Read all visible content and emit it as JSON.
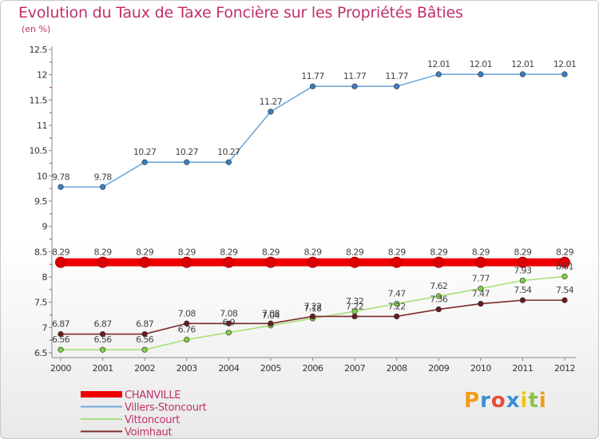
{
  "title": "Evolution du Taux de Taxe Foncière sur les Propriétés Bâties",
  "unit": "(en %)",
  "logo": "Proxiti",
  "chart_data": {
    "type": "line",
    "x": [
      "2000",
      "2001",
      "2002",
      "2003",
      "2004",
      "2005",
      "2006",
      "2007",
      "2008",
      "2009",
      "2010",
      "2011",
      "2012"
    ],
    "ylim": [
      6.5,
      12.5
    ],
    "yticks": [
      "6.5",
      "7",
      "7.5",
      "8",
      "8.5",
      "9",
      "9.5",
      "10",
      "10.5",
      "11",
      "11.5",
      "12",
      "12.5"
    ],
    "grid": false,
    "legend_position": "bottom-left",
    "series": [
      {
        "name": "CHANVILLE",
        "color": "#ee0000",
        "values": [
          8.29,
          8.29,
          8.29,
          8.29,
          8.29,
          8.29,
          8.29,
          8.29,
          8.29,
          8.29,
          8.29,
          8.29,
          8.29
        ],
        "labels": [
          "8.29",
          "8.29",
          "8.29",
          "8.29",
          "8.29",
          "8.29",
          "8.29",
          "8.29",
          "8.29",
          "8.29",
          "8.29",
          "8.29",
          "8.29"
        ]
      },
      {
        "name": "Villers-Stoncourt",
        "color": "#6fa8dc",
        "marker": "#3b7fc4",
        "values": [
          9.78,
          9.78,
          10.27,
          10.27,
          10.27,
          11.27,
          11.77,
          11.77,
          11.77,
          12.01,
          12.01,
          12.01,
          12.01
        ],
        "labels": [
          "9.78",
          "9.78",
          "10.27",
          "10.27",
          "10.27",
          "11.27",
          "11.77",
          "11.77",
          "11.77",
          "12.01",
          "12.01",
          "12.01",
          "12.01"
        ]
      },
      {
        "name": "Vittoncourt",
        "color": "#a8e07a",
        "marker": "#7fd044",
        "values": [
          6.56,
          6.56,
          6.56,
          6.76,
          6.9,
          7.04,
          7.18,
          7.32,
          7.47,
          7.62,
          7.77,
          7.93,
          8.01
        ],
        "labels": [
          "6.56",
          "6.56",
          "6.56",
          "6.76",
          "6.9",
          "7.04",
          "7.18",
          "7.32",
          "7.47",
          "7.62",
          "7.77",
          "7.93",
          "8.01"
        ]
      },
      {
        "name": "Voimhaut",
        "color": "#7a2a2a",
        "marker": "#6b1e1e",
        "values": [
          6.87,
          6.87,
          6.87,
          7.08,
          7.08,
          7.08,
          7.22,
          7.22,
          7.22,
          7.36,
          7.47,
          7.54,
          7.54
        ],
        "labels": [
          "6.87",
          "6.87",
          "6.87",
          "7.08",
          "7.08",
          "7.08",
          "7.22",
          "7.22",
          "7.22",
          "7.36",
          "7.47",
          "7.54",
          "7.54"
        ]
      }
    ]
  }
}
